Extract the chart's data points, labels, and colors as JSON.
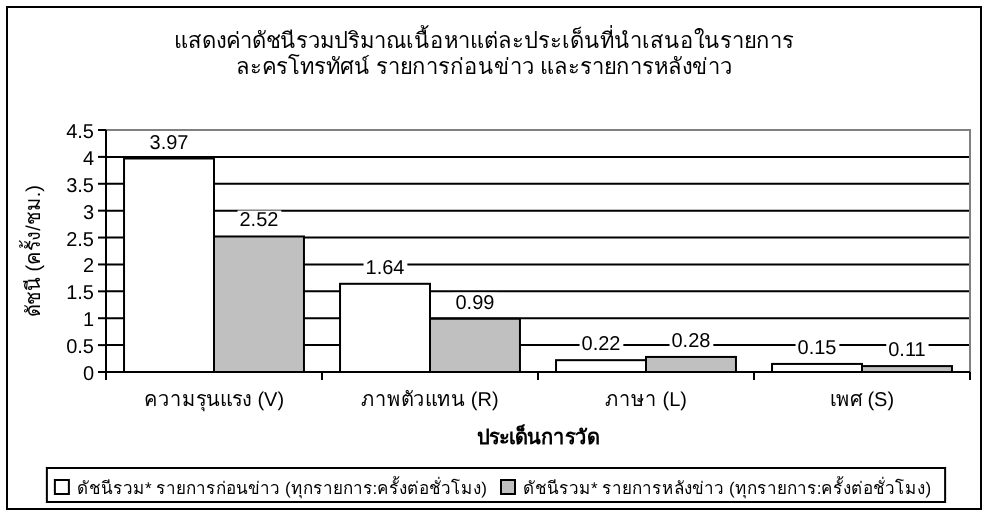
{
  "chart_data": {
    "type": "bar",
    "title": "แสดงค่าดัชนีรวมปริมาณเนื้อหาแต่ละประเด็นที่นำเสนอในรายการ",
    "subtitle": "ละครโทรทัศน์ รายการก่อนข่าว และรายการหลังข่าว",
    "xlabel": "ประเด็นการวัด",
    "ylabel": "ดัชนี (ครั้ง/ชม.)",
    "categories": [
      "ความรุนแรง (V)",
      "ภาพตัวแทน (R)",
      "ภาษา (L)",
      "เพศ (S)"
    ],
    "series": [
      {
        "name": "ดัชนีรวม* รายการก่อนข่าว (ทุกรายการ:ครั้งต่อชั่วโมง)",
        "color": "#ffffff",
        "values": [
          3.97,
          1.64,
          0.22,
          0.15
        ]
      },
      {
        "name": "ดัชนีรวม* รายการหลังข่าว (ทุกรายการ:ครั้งต่อชั่วโมง)",
        "color": "#c0c0c0",
        "values": [
          2.52,
          0.99,
          0.28,
          0.11
        ]
      }
    ],
    "ylim": [
      0,
      4.5
    ],
    "yticks": [
      0,
      0.5,
      1,
      1.5,
      2,
      2.5,
      3,
      3.5,
      4,
      4.5
    ],
    "grid": "y",
    "legend": "bottom",
    "data_labels": true
  }
}
